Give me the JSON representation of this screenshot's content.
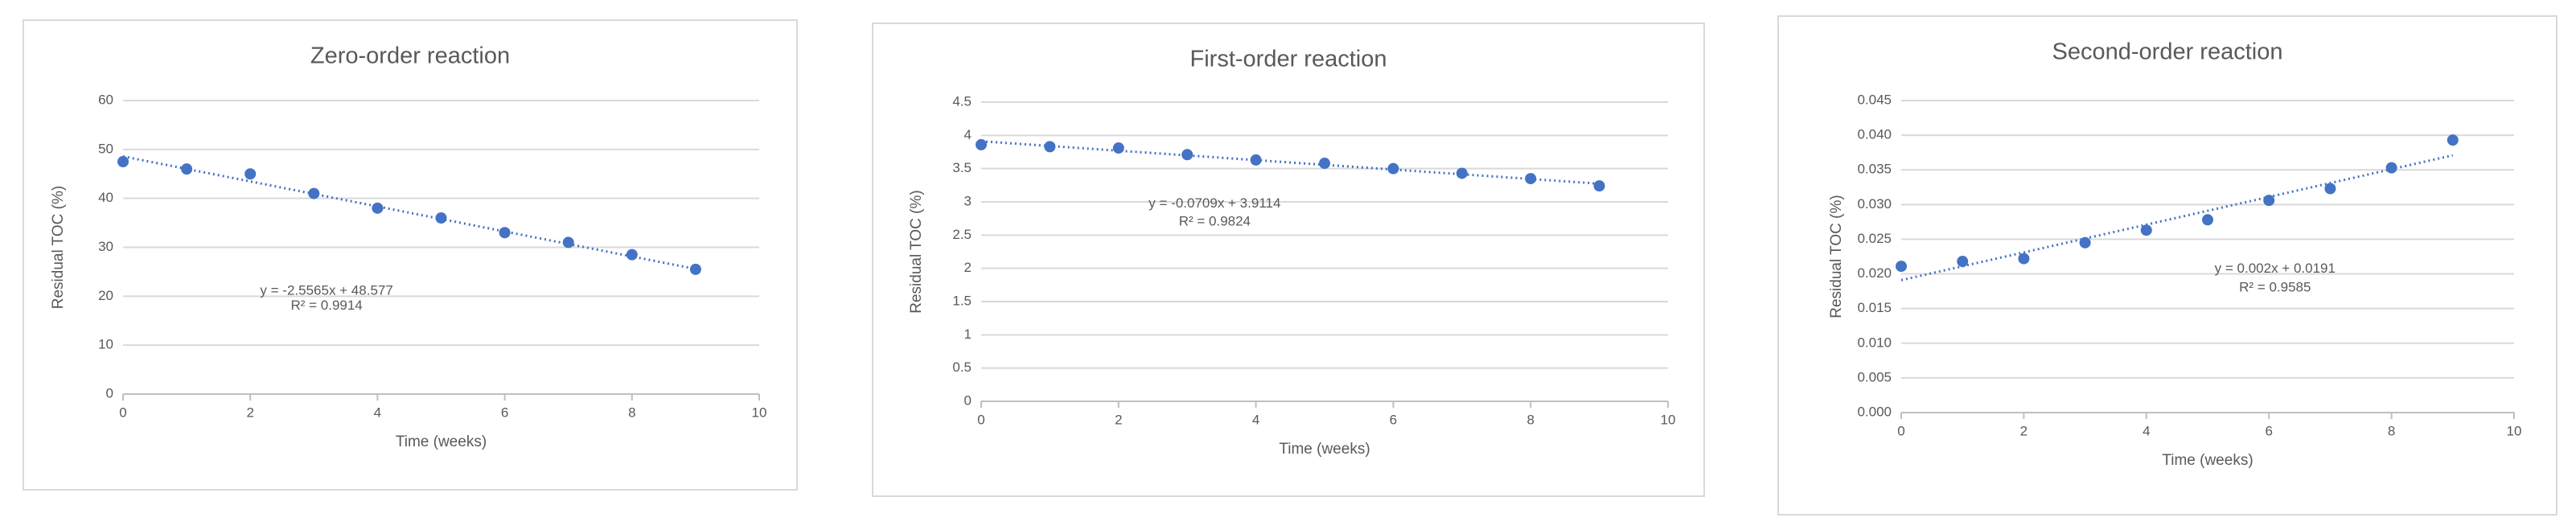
{
  "chart_data": [
    {
      "type": "scatter",
      "title": "Zero-order reaction",
      "x_label": "Time (weeks)",
      "y_label": "Residual TOC (%)",
      "x": [
        0,
        1,
        2,
        3,
        4,
        5,
        6,
        7,
        8,
        9
      ],
      "series": [
        {
          "color": "#4472c4",
          "values": [
            47.5,
            46,
            45,
            41,
            38,
            36,
            33,
            31,
            28.5,
            25.5
          ]
        }
      ],
      "trendline": {
        "slope": -2.5565,
        "intercept": 48.577,
        "equation": "y = -2.5565x + 48.577",
        "r_squared": "R² = 0.9914"
      },
      "xlim": [
        0,
        10
      ],
      "xticks": [
        0,
        2,
        4,
        6,
        8,
        10
      ],
      "ylim": [
        0,
        60
      ],
      "yticks": [
        0,
        10,
        20,
        30,
        40,
        50,
        60
      ],
      "grid": true
    },
    {
      "type": "scatter",
      "title": "First-order reaction",
      "x_label": "Time (weeks)",
      "y_label": "Residual TOC (%)",
      "x": [
        0,
        1,
        2,
        3,
        4,
        5,
        6,
        7,
        8,
        9
      ],
      "series": [
        {
          "color": "#4472c4",
          "values": [
            3.86,
            3.83,
            3.81,
            3.71,
            3.63,
            3.58,
            3.5,
            3.43,
            3.35,
            3.24
          ]
        }
      ],
      "trendline": {
        "slope": -0.0709,
        "intercept": 3.9114,
        "equation": "y = -0.0709x + 3.9114",
        "r_squared": "R² = 0.9824"
      },
      "xlim": [
        0,
        10
      ],
      "xticks": [
        0,
        2,
        4,
        6,
        8,
        10
      ],
      "ylim": [
        0,
        4.5
      ],
      "yticks": [
        0,
        0.5,
        1,
        1.5,
        2,
        2.5,
        3,
        3.5,
        4,
        4.5
      ],
      "grid": true
    },
    {
      "type": "scatter",
      "title": "Second-order reaction",
      "x_label": "Time (weeks)",
      "y_label": "Residual TOC (%)",
      "x": [
        0,
        1,
        2,
        3,
        4,
        5,
        6,
        7,
        8,
        9
      ],
      "series": [
        {
          "color": "#4472c4",
          "values": [
            0.0211,
            0.0218,
            0.0222,
            0.0245,
            0.0263,
            0.0278,
            0.0306,
            0.0323,
            0.0353,
            0.0393
          ]
        }
      ],
      "trendline": {
        "slope": 0.002,
        "intercept": 0.0191,
        "equation": "y = 0.002x + 0.0191",
        "r_squared": "R² = 0.9585"
      },
      "xlim": [
        0,
        10
      ],
      "xticks": [
        0,
        2,
        4,
        6,
        8,
        10
      ],
      "ylim": [
        0,
        0.045
      ],
      "yticks": [
        {
          "value": 0,
          "label": "0.000"
        },
        {
          "value": 0.005,
          "label": "0.005"
        },
        {
          "value": 0.01,
          "label": "0.010"
        },
        {
          "value": 0.015,
          "label": "0.015"
        },
        {
          "value": 0.02,
          "label": "0.020"
        },
        {
          "value": 0.025,
          "label": "0.025"
        },
        {
          "value": 0.03,
          "label": "0.030"
        },
        {
          "value": 0.035,
          "label": "0.035"
        },
        {
          "value": 0.04,
          "label": "0.040"
        },
        {
          "value": 0.045,
          "label": "0.045"
        }
      ],
      "grid": true
    }
  ]
}
